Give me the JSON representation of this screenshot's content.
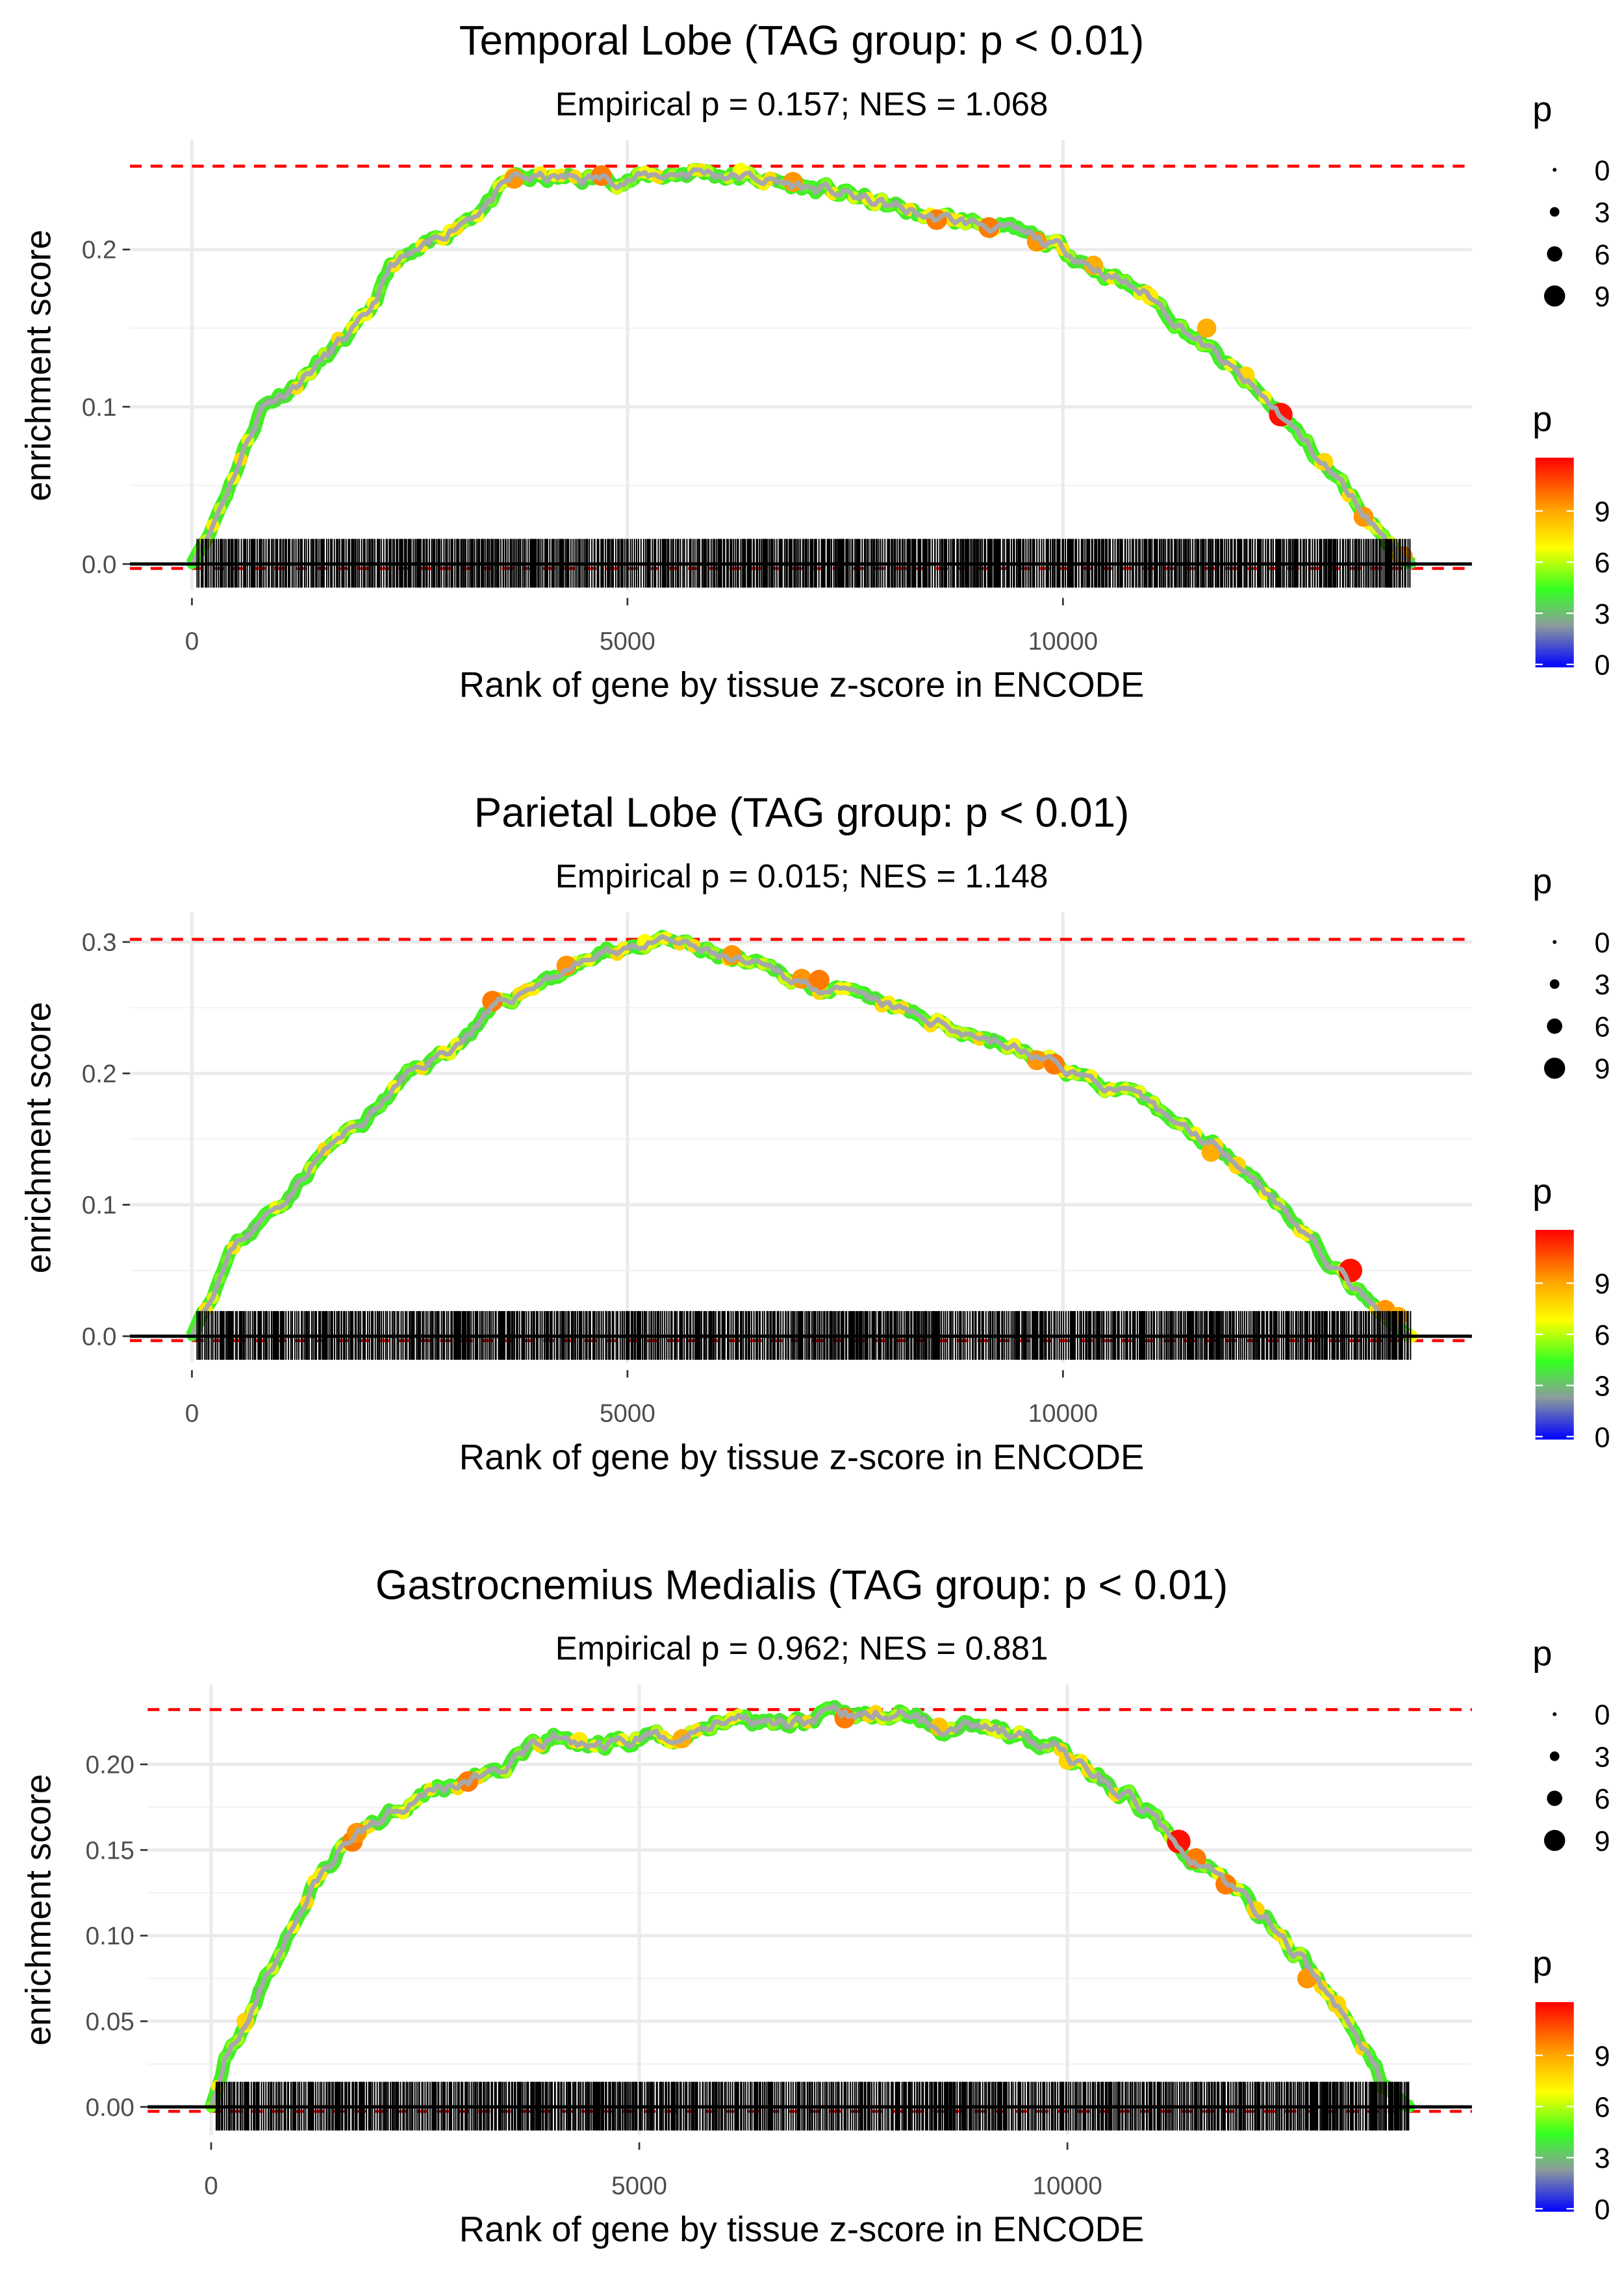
{
  "chart_data": [
    {
      "type": "line",
      "title": "Temporal Lobe (TAG group: p < 0.01)",
      "subtitle": "Empirical p = 0.157; NES = 1.068",
      "xlabel": "Rank of gene by tissue z-score in ENCODE",
      "ylabel": "enrichment score",
      "xlim": [
        -700,
        14800
      ],
      "ylim": [
        -0.03,
        0.27
      ],
      "xticks": [
        0,
        5000,
        10000
      ],
      "xtick_labels": [
        "0",
        "5000",
        "10000"
      ],
      "yticks": [
        0.0,
        0.1,
        0.2
      ],
      "ytick_labels": [
        "0.0",
        "0.1",
        "0.2"
      ],
      "max_es": 0.253,
      "curve": [
        [
          0,
          0
        ],
        [
          200,
          0.02
        ],
        [
          500,
          0.06
        ],
        [
          800,
          0.1
        ],
        [
          1200,
          0.115
        ],
        [
          1600,
          0.135
        ],
        [
          2000,
          0.155
        ],
        [
          2300,
          0.19
        ],
        [
          2700,
          0.2
        ],
        [
          3000,
          0.215
        ],
        [
          3400,
          0.23
        ],
        [
          3700,
          0.245
        ],
        [
          4500,
          0.245
        ],
        [
          5000,
          0.245
        ],
        [
          5800,
          0.25
        ],
        [
          6500,
          0.245
        ],
        [
          7500,
          0.235
        ],
        [
          8500,
          0.22
        ],
        [
          9200,
          0.215
        ],
        [
          10000,
          0.2
        ],
        [
          11000,
          0.17
        ],
        [
          11800,
          0.13
        ],
        [
          12500,
          0.095
        ],
        [
          13200,
          0.05
        ],
        [
          13800,
          0.01
        ],
        [
          14000,
          0
        ]
      ],
      "highlight_points": [
        [
          3700,
          0.245,
          9.5
        ],
        [
          4700,
          0.247,
          10
        ],
        [
          6300,
          0.25,
          7
        ],
        [
          6900,
          0.243,
          9.5
        ],
        [
          8550,
          0.219,
          10
        ],
        [
          9150,
          0.214,
          10
        ],
        [
          9700,
          0.205,
          9.5
        ],
        [
          10350,
          0.19,
          9
        ],
        [
          11000,
          0.17,
          7.5
        ],
        [
          11650,
          0.15,
          9
        ],
        [
          12100,
          0.12,
          8
        ],
        [
          12500,
          0.095,
          12
        ],
        [
          13000,
          0.065,
          8
        ],
        [
          13450,
          0.03,
          9.5
        ],
        [
          13900,
          0.005,
          9.5
        ]
      ],
      "seed": 11
    },
    {
      "type": "line",
      "title": "Parietal Lobe (TAG group: p < 0.01)",
      "subtitle": "Empirical p = 0.015; NES = 1.148",
      "xlabel": "Rank of gene by tissue z-score in ENCODE",
      "ylabel": "enrichment score",
      "xlim": [
        -700,
        14800
      ],
      "ylim": [
        -0.01,
        0.315
      ],
      "xticks": [
        0,
        5000,
        10000
      ],
      "xtick_labels": [
        "0",
        "5000",
        "10000"
      ],
      "yticks": [
        0.0,
        0.1,
        0.2,
        0.3
      ],
      "ytick_labels": [
        "0.0",
        "0.1",
        "0.2",
        "0.3"
      ],
      "max_es": 0.302,
      "curve": [
        [
          0,
          0
        ],
        [
          200,
          0.03
        ],
        [
          500,
          0.07
        ],
        [
          1000,
          0.1
        ],
        [
          1500,
          0.14
        ],
        [
          2000,
          0.165
        ],
        [
          2500,
          0.2
        ],
        [
          3000,
          0.22
        ],
        [
          3500,
          0.25
        ],
        [
          4000,
          0.27
        ],
        [
          4500,
          0.285
        ],
        [
          5000,
          0.297
        ],
        [
          5500,
          0.3
        ],
        [
          6000,
          0.29
        ],
        [
          7000,
          0.27
        ],
        [
          8000,
          0.25
        ],
        [
          9000,
          0.23
        ],
        [
          10000,
          0.205
        ],
        [
          11000,
          0.175
        ],
        [
          12000,
          0.135
        ],
        [
          12500,
          0.1
        ],
        [
          13000,
          0.06
        ],
        [
          13500,
          0.025
        ],
        [
          13800,
          0.005
        ],
        [
          14000,
          0
        ]
      ],
      "highlight_points": [
        [
          3450,
          0.255,
          10
        ],
        [
          4300,
          0.282,
          9.5
        ],
        [
          5200,
          0.3,
          7
        ],
        [
          6200,
          0.29,
          9.5
        ],
        [
          7000,
          0.272,
          9.5
        ],
        [
          7200,
          0.271,
          10
        ],
        [
          9700,
          0.21,
          9.5
        ],
        [
          9900,
          0.207,
          10
        ],
        [
          11700,
          0.14,
          9
        ],
        [
          12000,
          0.13,
          8
        ],
        [
          13300,
          0.05,
          12
        ],
        [
          13700,
          0.02,
          9.5
        ],
        [
          13850,
          0.015,
          9
        ]
      ],
      "seed": 23
    },
    {
      "type": "line",
      "title": "Gastrocnemius Medialis (TAG group: p < 0.01)",
      "subtitle": "Empirical p = 0.962; NES = 0.881",
      "xlabel": "Rank of gene by tissue z-score in ENCODE",
      "ylabel": "enrichment score",
      "xlim": [
        -700,
        14800
      ],
      "ylim": [
        -0.012,
        0.245
      ],
      "xticks": [
        0,
        5000,
        10000
      ],
      "xtick_labels": [
        "0",
        "5000",
        "10000"
      ],
      "yticks": [
        0.0,
        0.05,
        0.1,
        0.15,
        0.2
      ],
      "ytick_labels": [
        "0.00",
        "0.05",
        "0.10",
        "0.15",
        "0.20"
      ],
      "max_es": 0.232,
      "curve": [
        [
          0,
          0
        ],
        [
          200,
          0.03
        ],
        [
          500,
          0.06
        ],
        [
          800,
          0.09
        ],
        [
          1200,
          0.13
        ],
        [
          1600,
          0.155
        ],
        [
          2000,
          0.17
        ],
        [
          2500,
          0.185
        ],
        [
          3000,
          0.19
        ],
        [
          3500,
          0.2
        ],
        [
          4000,
          0.215
        ],
        [
          4500,
          0.21
        ],
        [
          5000,
          0.215
        ],
        [
          5500,
          0.215
        ],
        [
          6000,
          0.228
        ],
        [
          7000,
          0.226
        ],
        [
          8000,
          0.23
        ],
        [
          8500,
          0.222
        ],
        [
          9000,
          0.225
        ],
        [
          10000,
          0.205
        ],
        [
          11000,
          0.17
        ],
        [
          11500,
          0.145
        ],
        [
          12000,
          0.125
        ],
        [
          12500,
          0.1
        ],
        [
          13000,
          0.07
        ],
        [
          13500,
          0.03
        ],
        [
          13800,
          0.005
        ],
        [
          14000,
          0
        ]
      ],
      "highlight_points": [
        [
          400,
          0.05,
          8
        ],
        [
          1650,
          0.155,
          10
        ],
        [
          1700,
          0.16,
          9.5
        ],
        [
          3000,
          0.19,
          10
        ],
        [
          4300,
          0.214,
          7.5
        ],
        [
          5500,
          0.215,
          9
        ],
        [
          7400,
          0.227,
          10
        ],
        [
          8500,
          0.222,
          8.5
        ],
        [
          10000,
          0.202,
          8
        ],
        [
          11300,
          0.155,
          12
        ],
        [
          11500,
          0.145,
          10
        ],
        [
          11850,
          0.13,
          10
        ],
        [
          12200,
          0.115,
          8
        ],
        [
          12800,
          0.075,
          9.5
        ],
        [
          13150,
          0.06,
          8
        ]
      ],
      "seed": 37
    }
  ],
  "legend": {
    "size_title": "p",
    "size_values": [
      0,
      3,
      6,
      9
    ],
    "size_labels": [
      "0",
      "3",
      "6",
      "9"
    ],
    "color_title": "p",
    "color_labels": [
      "9",
      "6",
      "3",
      "0"
    ],
    "color_values": [
      9,
      6,
      3,
      0
    ],
    "color_range": [
      0,
      12.3
    ],
    "colors": {
      "low": "#0000ff",
      "mid_gray": "#8c9c9c",
      "green": "#33ff22",
      "yellow": "#ffff00",
      "orange": "#ffa500",
      "high": "#ff0000"
    }
  },
  "styles": {
    "max_line_color": "#ff0000",
    "curve_color": "#a8a8a8",
    "grid_color": "#ebebeb",
    "hit_color": "#000000"
  }
}
